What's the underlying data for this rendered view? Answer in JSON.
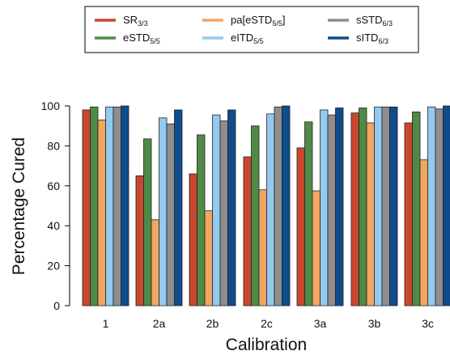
{
  "chart_data": {
    "type": "bar",
    "title": "",
    "xlabel": "Calibration",
    "ylabel": "Percentage Cured",
    "ylim": [
      0,
      100
    ],
    "yticks": [
      0,
      20,
      40,
      60,
      80,
      100
    ],
    "grid": false,
    "legend_placement": "top",
    "categories": [
      "1",
      "2a",
      "2b",
      "2c",
      "3a",
      "3b",
      "3c"
    ],
    "series": [
      {
        "name": "SR",
        "sub": "3/3",
        "color": "#c9472f",
        "values": [
          98,
          65,
          66,
          74.5,
          79,
          96.5,
          91.5
        ]
      },
      {
        "name": "eSTD",
        "sub": "5/5",
        "color": "#4f8a47",
        "values": [
          99.5,
          83.5,
          85.5,
          90,
          92,
          99,
          97
        ]
      },
      {
        "name": "pa[eSTD",
        "sub": "5/5",
        "suffix": "]",
        "color": "#f2a660",
        "values": [
          93,
          43,
          47.5,
          58,
          57.5,
          91.5,
          73
        ]
      },
      {
        "name": "eITD",
        "sub": "5/5",
        "color": "#94caf0",
        "values": [
          99.5,
          94,
          95.5,
          96,
          98,
          99.5,
          99.5
        ]
      },
      {
        "name": "sSTD",
        "sub": "6/3",
        "color": "#8e8e8e",
        "values": [
          99.5,
          91,
          92.5,
          99.5,
          95.5,
          99.5,
          98.5
        ]
      },
      {
        "name": "sITD",
        "sub": "6/3",
        "color": "#0f4c8c",
        "values": [
          100,
          98,
          98,
          100,
          99,
          99.5,
          100
        ]
      }
    ]
  }
}
